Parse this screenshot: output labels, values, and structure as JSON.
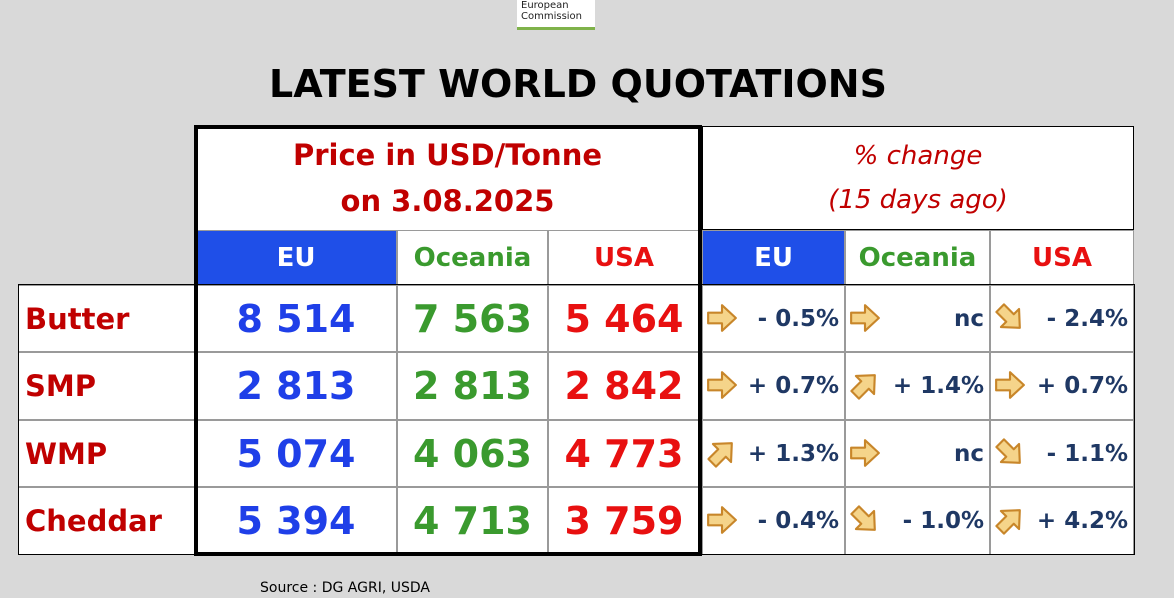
{
  "logo": {
    "line1": "European",
    "line2": "Commission"
  },
  "title": "LATEST WORLD QUOTATIONS",
  "table": {
    "price_header": [
      "Price in USD/Tonne",
      "on 3.08.2025"
    ],
    "change_header": [
      "% change",
      "(15 days ago)"
    ],
    "price_columns": [
      "EU",
      "Oceania",
      "USA"
    ],
    "change_columns": [
      "EU",
      "Oceania",
      "USA"
    ],
    "rows": [
      {
        "product": "Butter",
        "prices": [
          "8 514",
          "7 563",
          "5 464"
        ],
        "changes": [
          "- 0.5%",
          "nc",
          "- 2.4%"
        ]
      },
      {
        "product": "SMP",
        "prices": [
          "2 813",
          "2 813",
          "2 842"
        ],
        "changes": [
          "+ 0.7%",
          "+ 1.4%",
          "+ 0.7%"
        ]
      },
      {
        "product": "WMP",
        "prices": [
          "5 074",
          "4 063",
          "4 773"
        ],
        "changes": [
          "+ 1.3%",
          "nc",
          "- 1.1%"
        ]
      },
      {
        "product": "Cheddar",
        "prices": [
          "5 394",
          "4 713",
          "3 759"
        ],
        "changes": [
          "- 0.4%",
          "- 1.0%",
          "+ 4.2%"
        ]
      }
    ]
  },
  "source": "Source : DG AGRI, USDA"
}
